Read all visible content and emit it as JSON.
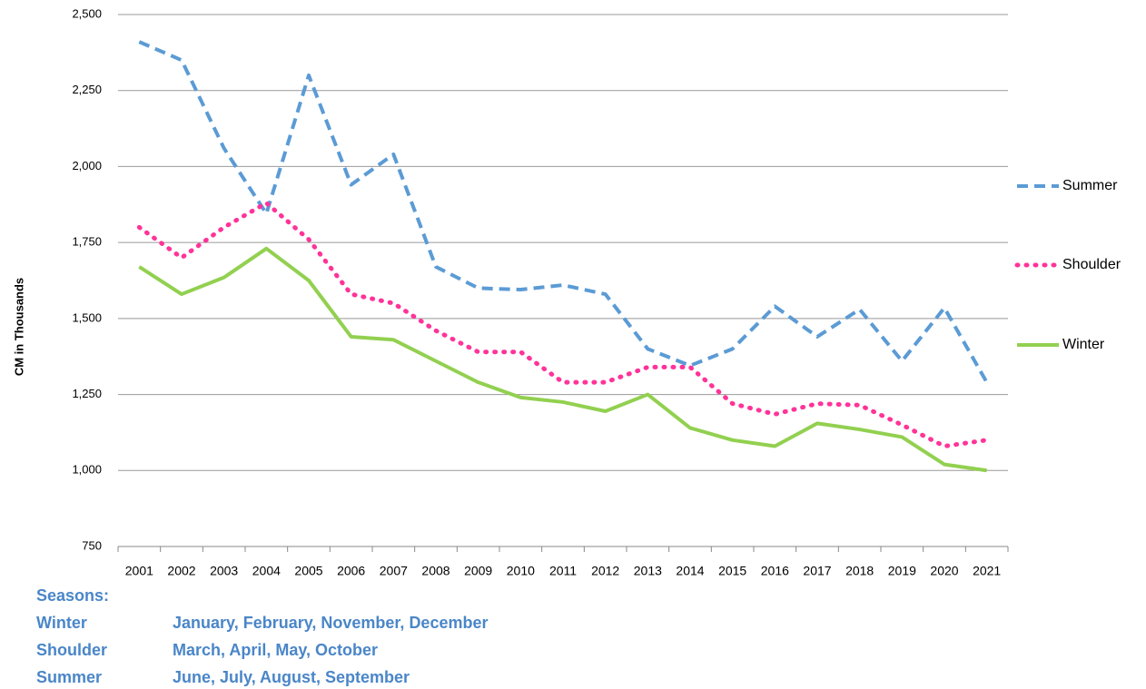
{
  "chart_data": {
    "type": "line",
    "y_label": "CM in Thousands",
    "categories": [
      "2001",
      "2002",
      "2003",
      "2004",
      "2005",
      "2006",
      "2007",
      "2008",
      "2009",
      "2010",
      "2011",
      "2012",
      "2013",
      "2014",
      "2015",
      "2016",
      "2017",
      "2018",
      "2019",
      "2020",
      "2021"
    ],
    "series": [
      {
        "name": "Summer",
        "color": "#5b9bd5",
        "style": "dashed",
        "values": [
          2410,
          2350,
          2060,
          1845,
          2300,
          1940,
          2040,
          1670,
          1600,
          1595,
          1610,
          1580,
          1400,
          1345,
          1400,
          1540,
          1440,
          1530,
          1360,
          1535,
          1290
        ]
      },
      {
        "name": "Shoulder",
        "color": "#ff3399",
        "style": "dotted",
        "values": [
          1800,
          1700,
          1800,
          1880,
          1760,
          1580,
          1550,
          1460,
          1390,
          1390,
          1290,
          1290,
          1340,
          1340,
          1220,
          1185,
          1220,
          1215,
          1150,
          1080,
          1100
        ]
      },
      {
        "name": "Winter",
        "color": "#92d050",
        "style": "solid",
        "values": [
          1670,
          1580,
          1635,
          1730,
          1625,
          1440,
          1430,
          1360,
          1290,
          1240,
          1225,
          1195,
          1250,
          1140,
          1100,
          1080,
          1155,
          1135,
          1110,
          1020,
          1000
        ]
      }
    ],
    "ylim": [
      750,
      2500
    ],
    "yticks": [
      750,
      {
        "value": 1000,
        "label": "1,000"
      },
      {
        "value": 1250,
        "label": "1,250"
      },
      {
        "value": 1500,
        "label": "1,500"
      },
      {
        "value": 1750,
        "label": "1,750"
      },
      {
        "value": 2000,
        "label": "2,000"
      },
      {
        "value": 2250,
        "label": "2,250"
      },
      {
        "value": 2500,
        "label": "2,500"
      }
    ],
    "grid": true,
    "legend": "right",
    "notes": {
      "title": "Seasons:",
      "rows": [
        [
          "Winter",
          "January, February, November, December"
        ],
        [
          "Shoulder",
          "March, April, May, October"
        ],
        [
          "Summer",
          "June, July, August, September"
        ]
      ]
    }
  }
}
